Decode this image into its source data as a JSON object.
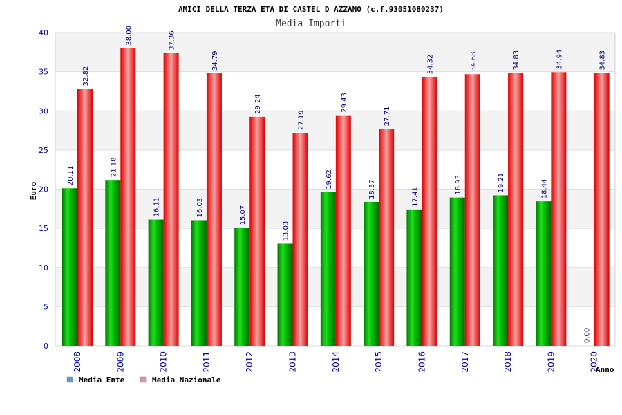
{
  "chart_data": {
    "type": "bar",
    "title": "AMICI DELLA TERZA ETA DI CASTEL D AZZANO (c.f.93051080237)",
    "subtitle": "Media Importi",
    "xlabel": "Anno",
    "ylabel": "Euro",
    "ylim": [
      0,
      40
    ],
    "yticks": [
      0,
      5,
      10,
      15,
      20,
      25,
      30,
      35,
      40
    ],
    "grid": true,
    "legend_position": "bottom-left",
    "categories": [
      "2008",
      "2009",
      "2010",
      "2011",
      "2012",
      "2013",
      "2014",
      "2015",
      "2016",
      "2017",
      "2018",
      "2019",
      "2020"
    ],
    "series": [
      {
        "name": "Media Ente",
        "color": "#00aa00",
        "legend_color": "#5b9bd5",
        "values": [
          20.11,
          21.18,
          16.11,
          16.03,
          15.07,
          13.03,
          19.62,
          18.37,
          17.41,
          18.93,
          19.21,
          18.44,
          0.0
        ],
        "labels": [
          "20.11",
          "21.18",
          "16.11",
          "16.03",
          "15.07",
          "13.03",
          "19.62",
          "18.37",
          "17.41",
          "18.93",
          "19.21",
          "18.44",
          "0.00"
        ]
      },
      {
        "name": "Media Nazionale",
        "color": "#ee1111",
        "legend_color": "#e58fb4",
        "values": [
          32.82,
          38.0,
          37.36,
          34.79,
          29.24,
          27.19,
          29.43,
          27.71,
          34.32,
          34.68,
          34.83,
          34.94,
          34.83
        ],
        "labels": [
          "32.82",
          "38.00",
          "37.36",
          "34.79",
          "29.24",
          "27.19",
          "29.43",
          "27.71",
          "34.32",
          "34.68",
          "34.83",
          "34.94",
          "34.83"
        ]
      }
    ]
  }
}
